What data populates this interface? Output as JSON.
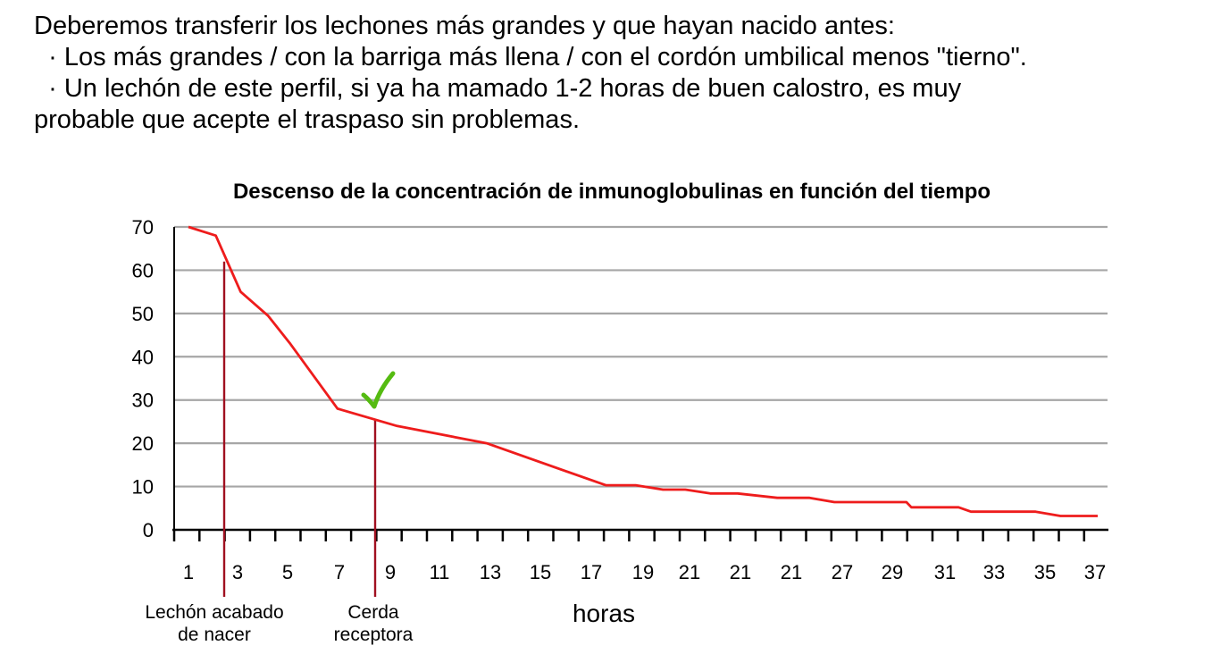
{
  "intro": {
    "line1": "Deberemos transferir los lechones más grandes y que hayan nacido antes:",
    "line2": "  · Los más grandes / con la barriga más llena / con el cordón umbilical menos \"tierno\".",
    "line3": "  · Un lechón de este perfil, si ya ha mamado 1-2 horas de buen calostro, es muy",
    "line4": "probable que acepte el traspaso sin problemas."
  },
  "chart_data": {
    "type": "line",
    "title": "Descenso de la concentración de inmunoglobulinas en función del tiempo",
    "xlabel": "horas",
    "ylabel": "",
    "ylim": [
      0,
      70
    ],
    "yticks": [
      "0",
      "10",
      "20",
      "30",
      "40",
      "50",
      "60",
      "70"
    ],
    "grid": true,
    "xtick_labels": [
      "1",
      "3",
      "5",
      "7",
      "9",
      "11",
      "13",
      "15",
      "17",
      "19",
      "21",
      "21",
      "21",
      "27",
      "29",
      "31",
      "33",
      "35",
      "37"
    ],
    "x_index_range": [
      1,
      37.7
    ],
    "series": [
      {
        "color": "#ee1c1c",
        "x": [
          1,
          2.1,
          3.1,
          4.2,
          5.1,
          7,
          9.4,
          13,
          17.8,
          19,
          20.1,
          21,
          22,
          23.1,
          24.7,
          26,
          27,
          29.9,
          30.1,
          32,
          32.5,
          34,
          35.1,
          36.1,
          37.6
        ],
        "y": [
          70,
          68,
          55,
          49.5,
          43,
          28,
          24,
          20,
          10.3,
          10.3,
          9.3,
          9.3,
          8.4,
          8.4,
          7.4,
          7.4,
          6.4,
          6.4,
          5.2,
          5.2,
          4.2,
          4.2,
          4.2,
          3.2,
          3.2
        ]
      }
    ],
    "annotations": [
      {
        "name": "lechon",
        "x": 2.4,
        "y_top": 62,
        "label_line1": "Lechón acabado",
        "label_line2": "de nacer",
        "color": "#a01020"
      },
      {
        "name": "cerda",
        "x": 8.3,
        "y_top": 25.5,
        "label_line1": "Cerda",
        "label_line2": "receptora",
        "color": "#a01020"
      }
    ],
    "checkmark": {
      "x": 8.4,
      "y": 33,
      "color": "#55bb11"
    }
  }
}
